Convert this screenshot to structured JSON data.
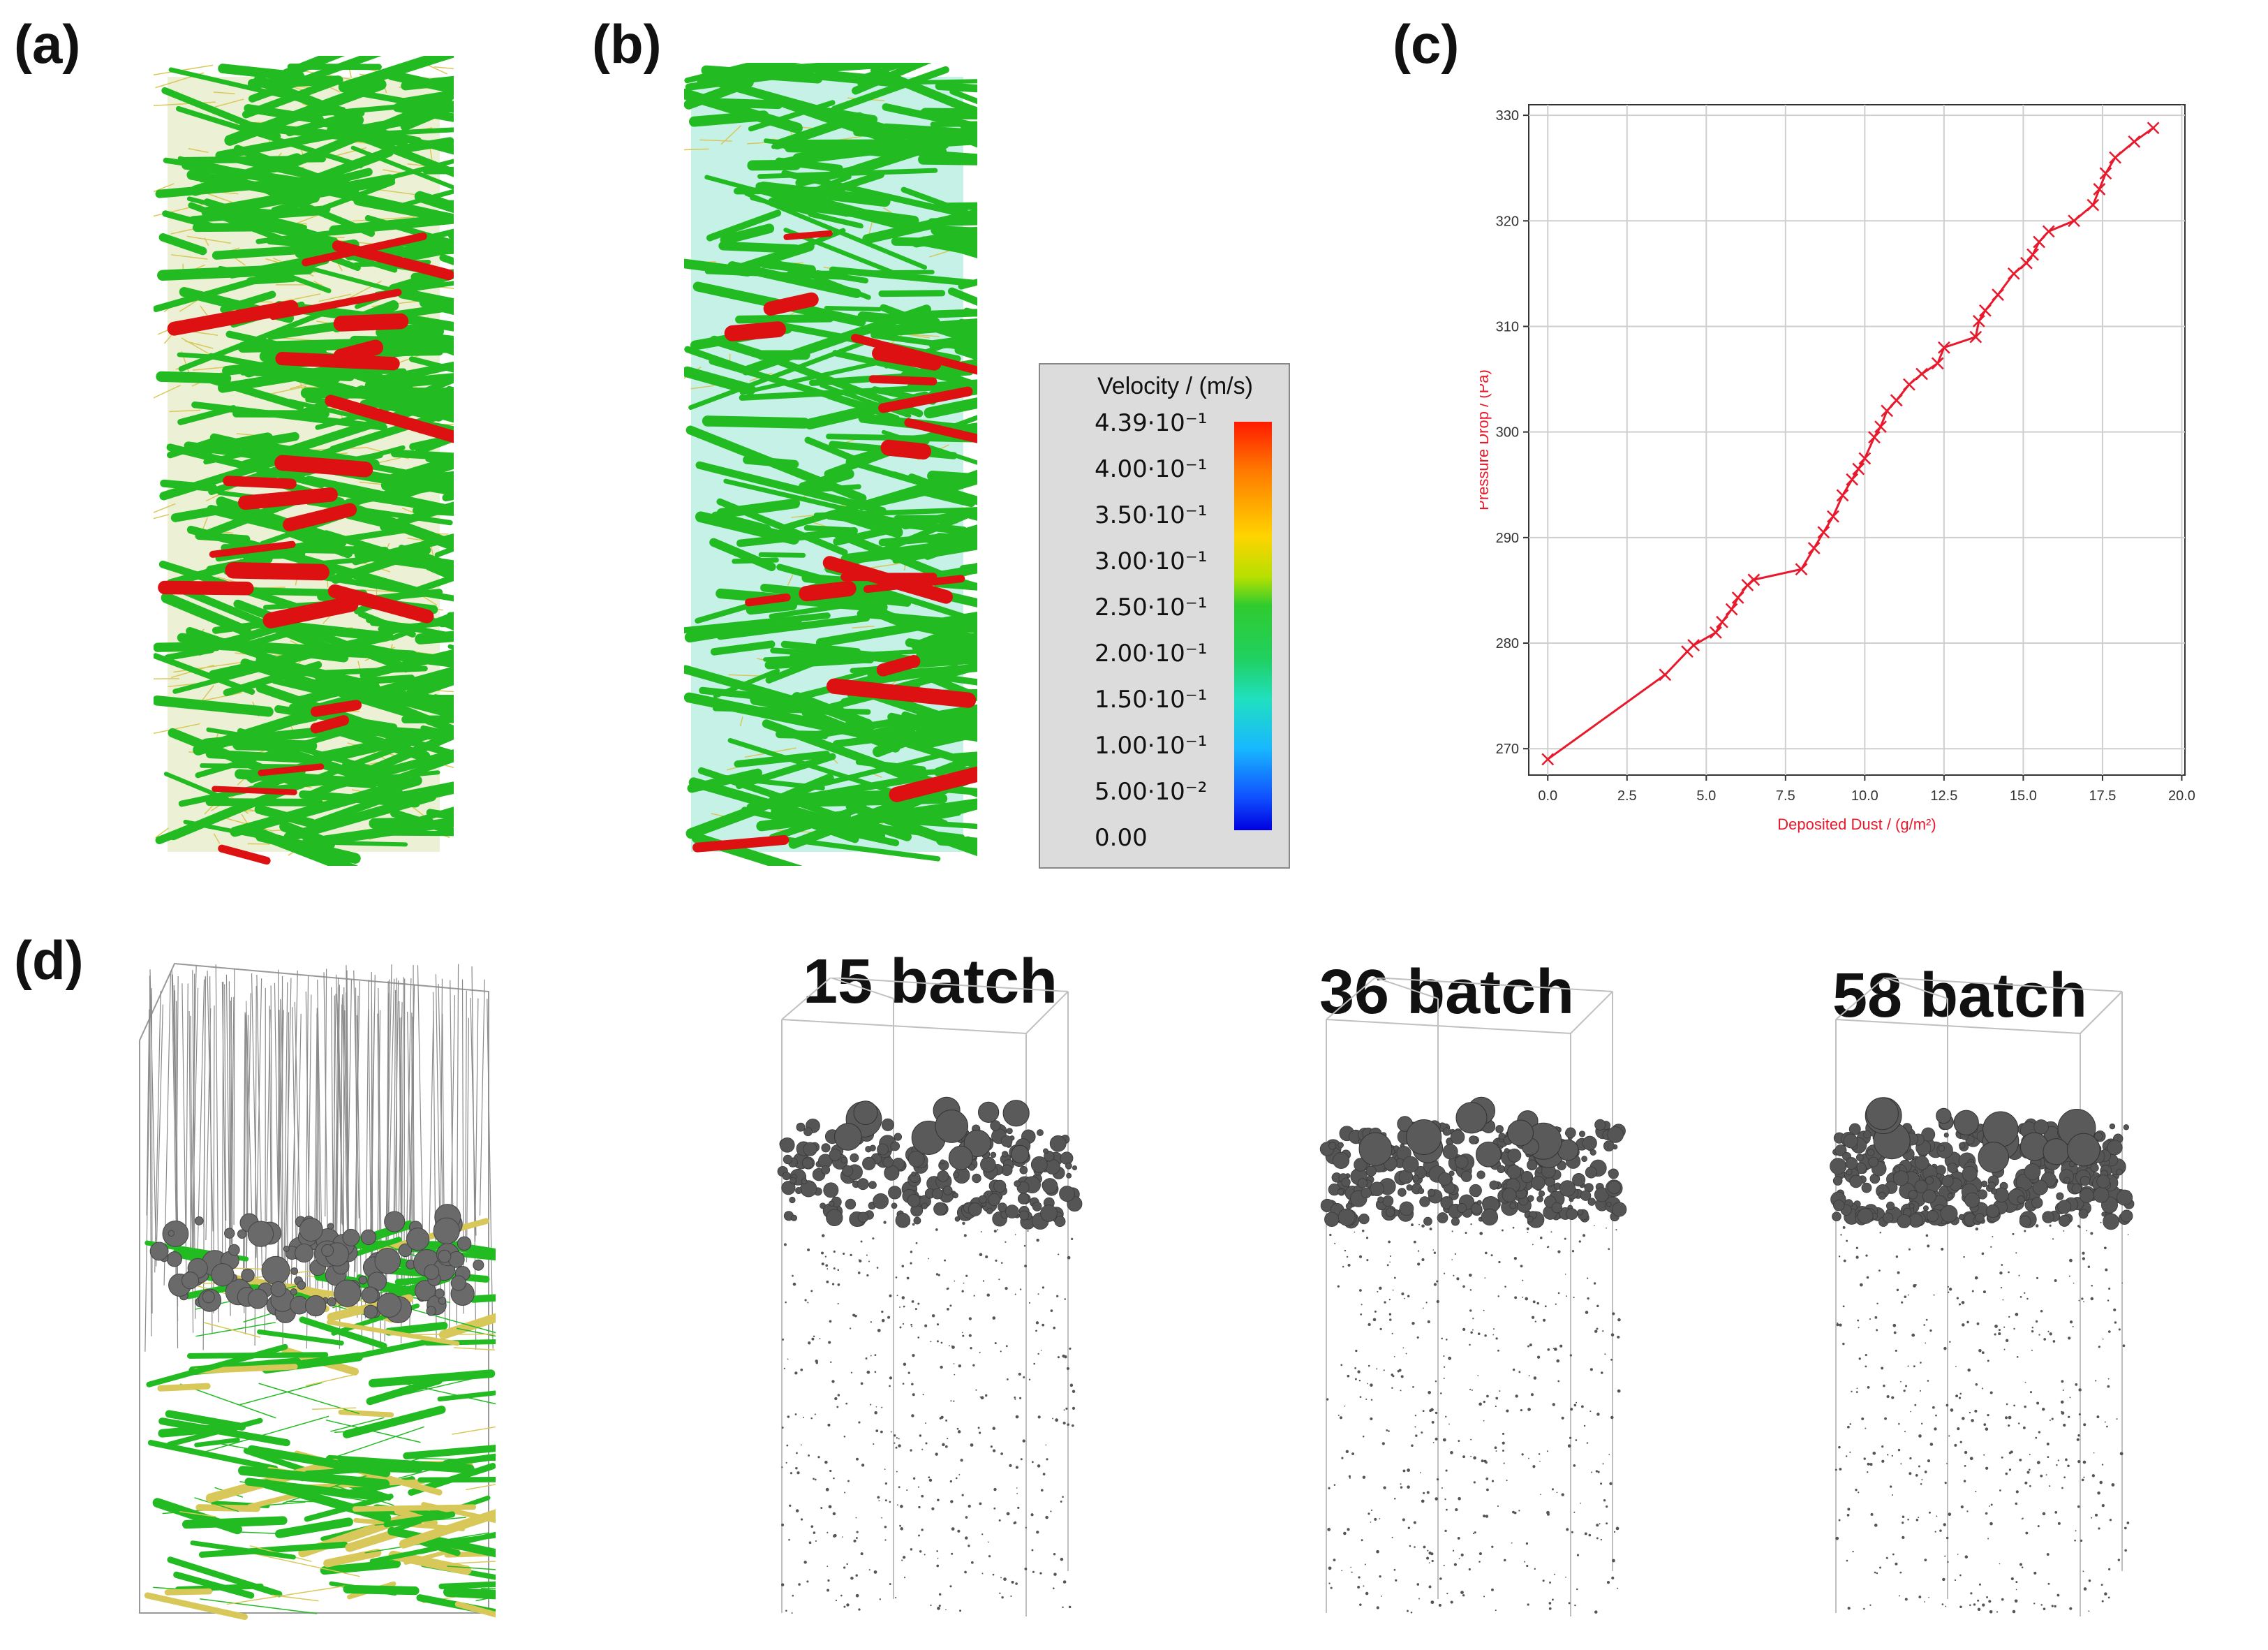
{
  "panels": {
    "a": "(a)",
    "b": "(b)",
    "c": "(c)",
    "d": "(d)"
  },
  "legend": {
    "title": "Velocity / (m/s)",
    "ticks": [
      "4.39·10⁻¹",
      "4.00·10⁻¹",
      "3.50·10⁻¹",
      "3.00·10⁻¹",
      "2.50·10⁻¹",
      "2.00·10⁻¹",
      "1.50·10⁻¹",
      "1.00·10⁻¹",
      "5.00·10⁻²",
      "0.00"
    ]
  },
  "batches": [
    "15 batch",
    "36 batch",
    "58 batch"
  ],
  "colors": {
    "fiber_green": "#22bb22",
    "fiber_red": "#dd1111",
    "fiber_yellow": "#d8c85a",
    "dust_gray": "#555555",
    "curve_red": "#e8192c"
  },
  "chart_data": {
    "type": "line",
    "title": "",
    "xlabel": "Deposited Dust / (g/m²)",
    "ylabel": "Pressure Drop / (Pa)",
    "xlim": [
      -0.6,
      20.1
    ],
    "ylim": [
      267.5,
      331
    ],
    "xticks": [
      "0.0",
      "2.5",
      "5.0",
      "7.5",
      "10.0",
      "12.5",
      "15.0",
      "17.5",
      "20.0"
    ],
    "xtick_values": [
      0,
      2.5,
      5,
      7.5,
      10,
      12.5,
      15,
      17.5,
      20
    ],
    "yticks": [
      "270",
      "280",
      "290",
      "300",
      "310",
      "320",
      "330"
    ],
    "ytick_values": [
      270,
      280,
      290,
      300,
      310,
      320,
      330
    ],
    "grid": true,
    "series": [
      {
        "name": "Pressure drop",
        "x": [
          0.0,
          3.7,
          4.4,
          4.6,
          5.3,
          5.5,
          5.8,
          6.0,
          6.3,
          6.5,
          8.0,
          8.4,
          8.7,
          9.0,
          9.3,
          9.6,
          9.8,
          10.0,
          10.3,
          10.5,
          10.7,
          11.0,
          11.4,
          11.8,
          12.3,
          12.5,
          13.5,
          13.6,
          13.8,
          14.2,
          14.7,
          15.1,
          15.3,
          15.5,
          15.8,
          16.6,
          17.2,
          17.4,
          17.6,
          17.9,
          18.5,
          19.1
        ],
        "y": [
          269.0,
          277.0,
          279.2,
          279.8,
          281.0,
          282.0,
          283.2,
          284.3,
          285.5,
          286.0,
          287.0,
          289.0,
          290.5,
          292.0,
          294.0,
          295.5,
          296.5,
          297.5,
          299.5,
          300.5,
          302.0,
          303.0,
          304.5,
          305.5,
          306.5,
          308.0,
          309.0,
          310.5,
          311.5,
          313.0,
          315.0,
          316.0,
          316.8,
          318.0,
          319.0,
          320.0,
          321.5,
          323.0,
          324.5,
          326.0,
          327.5,
          328.8
        ]
      }
    ]
  }
}
